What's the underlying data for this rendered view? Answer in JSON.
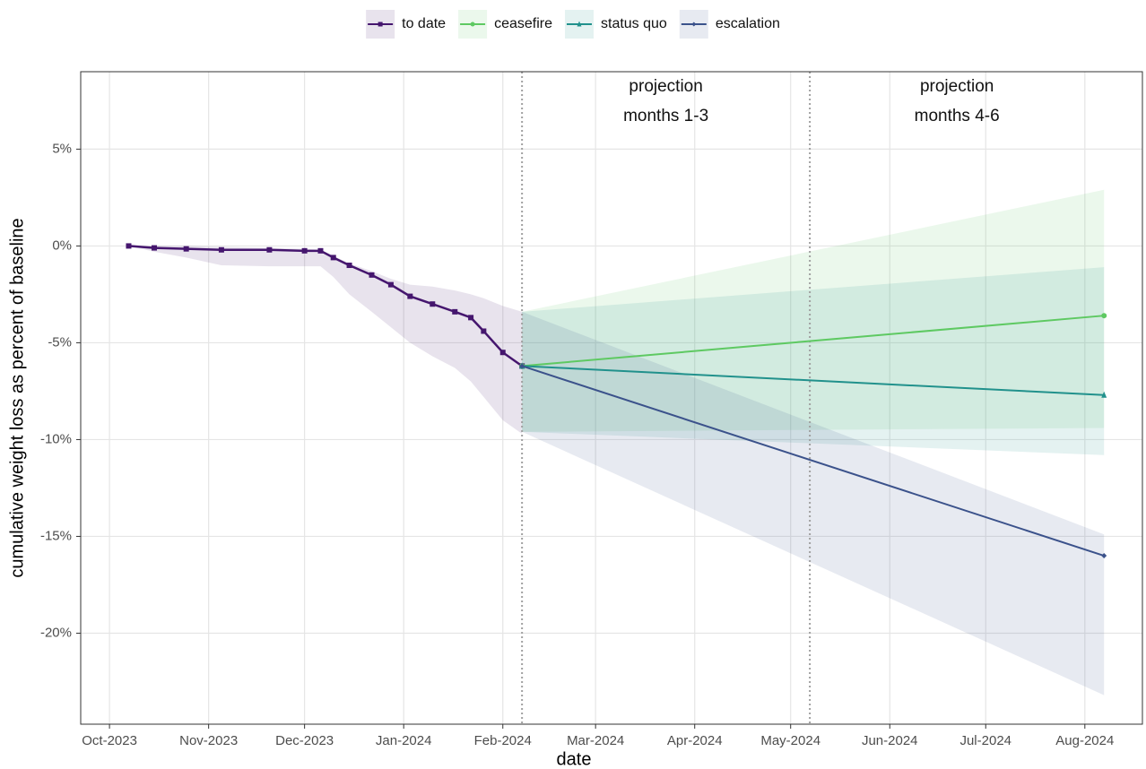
{
  "chart_data": {
    "type": "line",
    "x_label": "date",
    "y_label": "cumulative weight loss as percent of baseline",
    "xlim": [
      "2023-09-22",
      "2024-08-19"
    ],
    "xticks": [
      {
        "value": "2023-10-01",
        "label": "Oct-2023"
      },
      {
        "value": "2023-11-01",
        "label": "Nov-2023"
      },
      {
        "value": "2023-12-01",
        "label": "Dec-2023"
      },
      {
        "value": "2024-01-01",
        "label": "Jan-2024"
      },
      {
        "value": "2024-02-01",
        "label": "Feb-2024"
      },
      {
        "value": "2024-03-01",
        "label": "Mar-2024"
      },
      {
        "value": "2024-04-01",
        "label": "Apr-2024"
      },
      {
        "value": "2024-05-01",
        "label": "May-2024"
      },
      {
        "value": "2024-06-01",
        "label": "Jun-2024"
      },
      {
        "value": "2024-07-01",
        "label": "Jul-2024"
      },
      {
        "value": "2024-08-01",
        "label": "Aug-2024"
      }
    ],
    "ylim": [
      -24.7,
      9
    ],
    "yticks": [
      {
        "value": -20,
        "label": "-20%"
      },
      {
        "value": -15,
        "label": "-15%"
      },
      {
        "value": -10,
        "label": "-10%"
      },
      {
        "value": -5,
        "label": "-5%"
      },
      {
        "value": 0,
        "label": "0%"
      },
      {
        "value": 5,
        "label": "5%"
      }
    ],
    "grid": true,
    "legend": "top",
    "vlines": [
      "2024-02-07",
      "2024-05-07"
    ],
    "annotations": [
      [
        "projection",
        "months 1-3"
      ],
      [
        "projection",
        "months 4-6"
      ]
    ],
    "series": [
      {
        "name": "to date",
        "color": "#45166e",
        "marker": "square",
        "x": [
          "2023-10-07",
          "2023-10-15",
          "2023-10-25",
          "2023-11-05",
          "2023-11-20",
          "2023-12-01",
          "2023-12-06",
          "2023-12-10",
          "2023-12-15",
          "2023-12-22",
          "2023-12-28",
          "2024-01-03",
          "2024-01-10",
          "2024-01-17",
          "2024-01-22",
          "2024-01-26",
          "2024-02-01",
          "2024-02-07"
        ],
        "values": [
          0,
          -0.1,
          -0.15,
          -0.2,
          -0.2,
          -0.25,
          -0.25,
          -0.6,
          -1.0,
          -1.5,
          -2.0,
          -2.6,
          -3.0,
          -3.4,
          -3.7,
          -4.4,
          -5.5,
          -6.2
        ],
        "lower": [
          0,
          -0.3,
          -0.6,
          -1.0,
          -1.05,
          -1.05,
          -1.05,
          -1.6,
          -2.5,
          -3.4,
          -4.2,
          -5.0,
          -5.7,
          -6.3,
          -7.0,
          -7.8,
          -9.0,
          -9.7
        ],
        "upper": [
          0,
          0,
          0,
          -0.05,
          -0.1,
          -0.15,
          -0.2,
          -0.5,
          -0.9,
          -1.3,
          -1.7,
          -2.0,
          -2.1,
          -2.3,
          -2.5,
          -2.7,
          -3.1,
          -3.4
        ]
      },
      {
        "name": "ceasefire",
        "color": "#5ec962",
        "marker": "circle",
        "x": [
          "2024-02-07",
          "2024-08-07"
        ],
        "values": [
          -6.2,
          -3.6
        ],
        "lower": [
          -9.6,
          -9.4
        ],
        "upper": [
          -3.4,
          2.9
        ]
      },
      {
        "name": "status quo",
        "color": "#21918c",
        "marker": "triangle",
        "x": [
          "2024-02-07",
          "2024-08-07"
        ],
        "values": [
          -6.2,
          -7.7
        ],
        "lower": [
          -9.6,
          -10.8
        ],
        "upper": [
          -3.4,
          -1.1
        ]
      },
      {
        "name": "escalation",
        "color": "#3b528b",
        "marker": "diamond",
        "x": [
          "2024-02-07",
          "2024-08-07"
        ],
        "values": [
          -6.2,
          -16.0
        ],
        "lower": [
          -9.6,
          -23.2
        ],
        "upper": [
          -3.4,
          -14.9
        ]
      }
    ]
  }
}
